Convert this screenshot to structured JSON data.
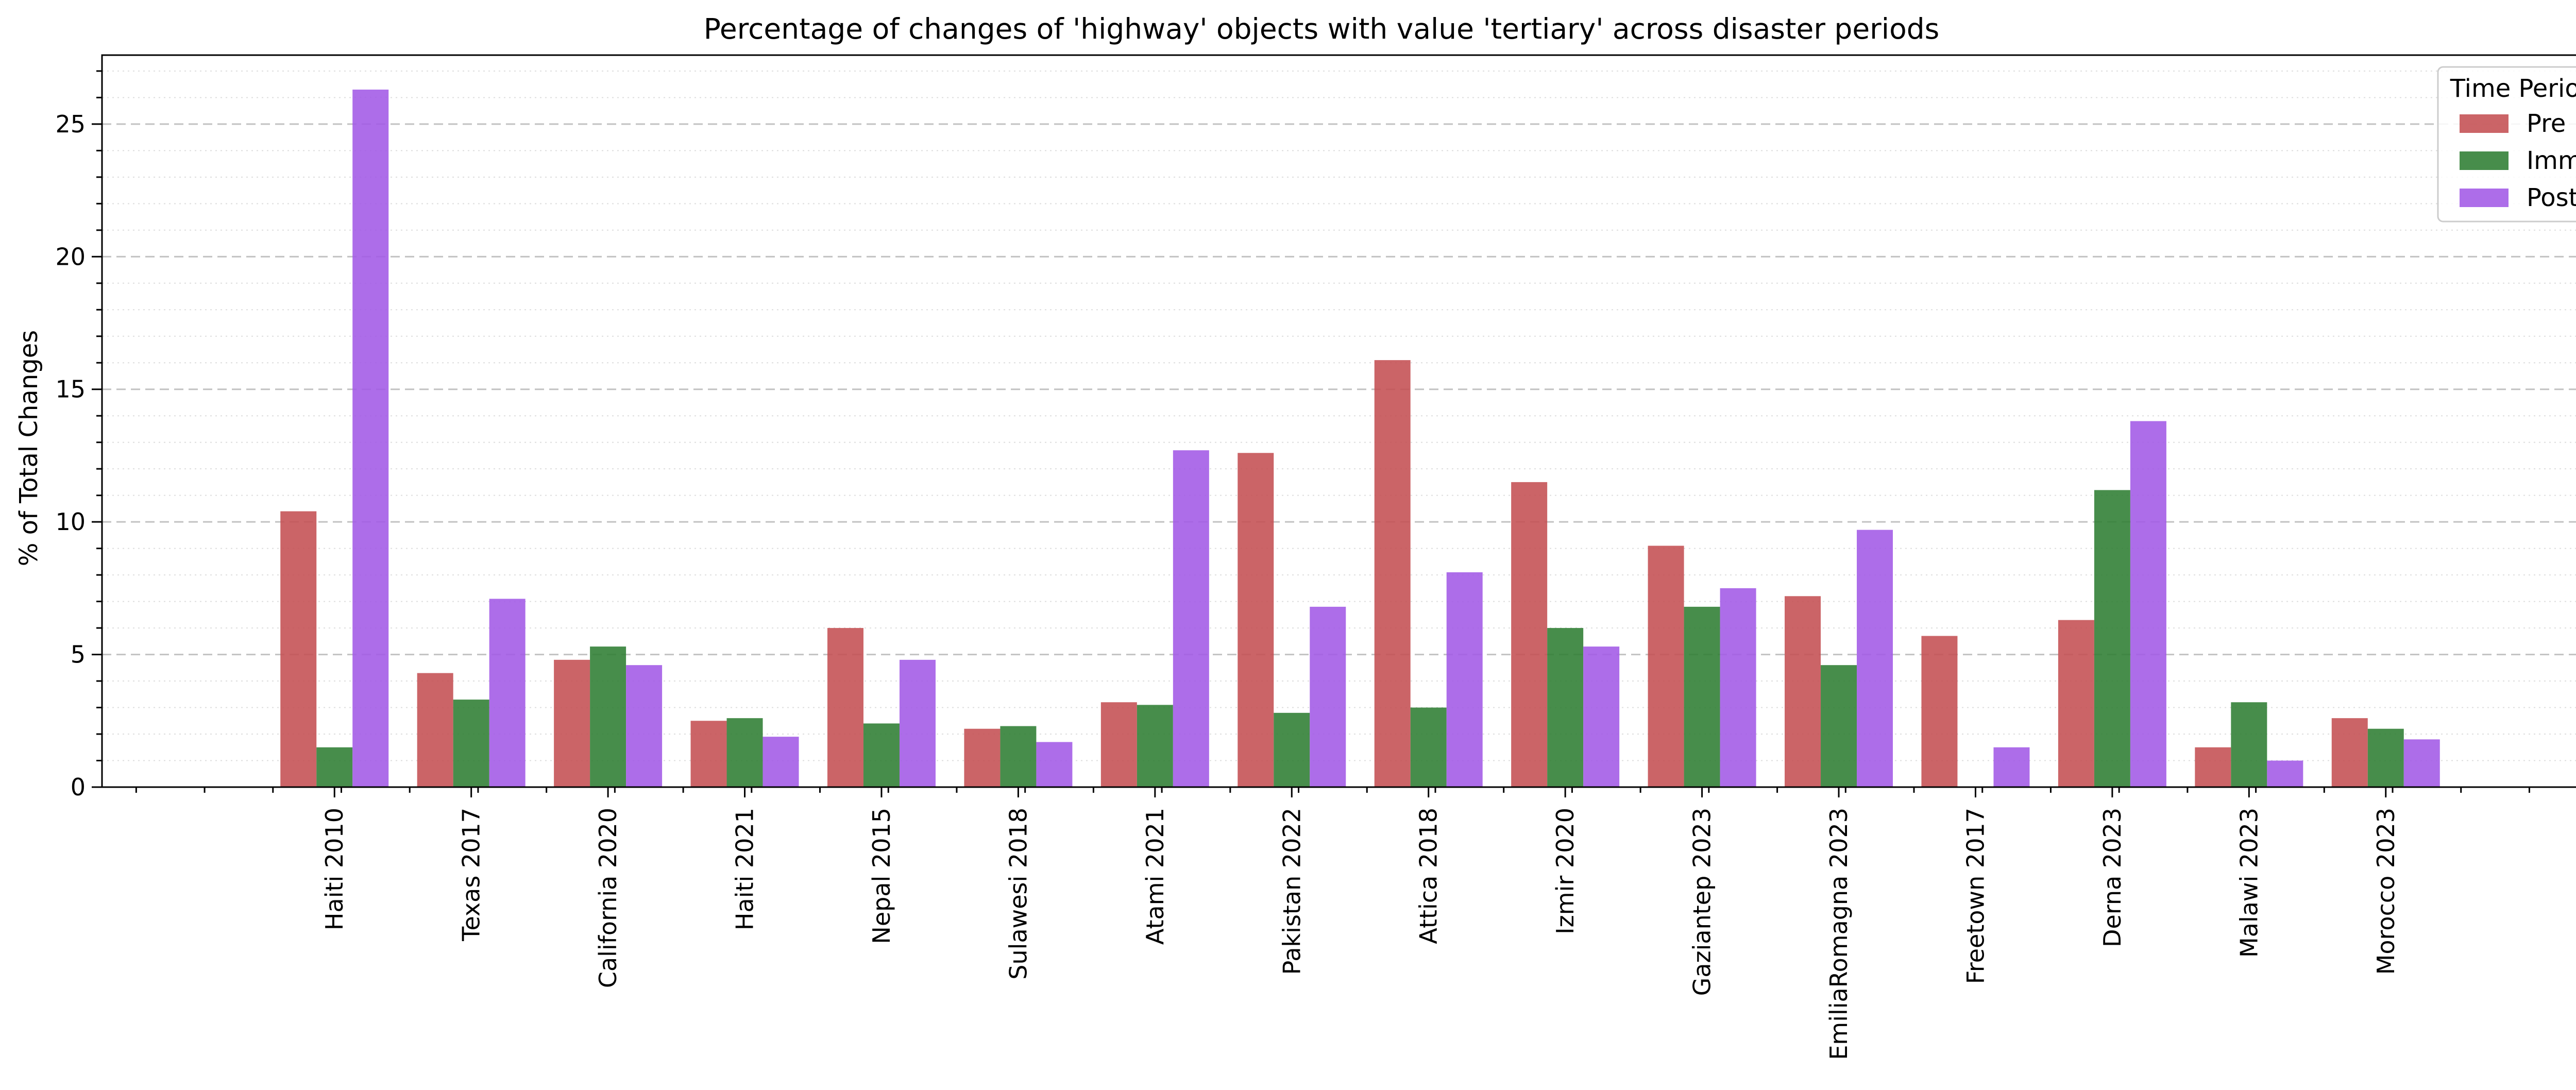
{
  "chart_data": {
    "type": "bar",
    "title": "Percentage of changes of 'highway' objects with value 'tertiary' across disaster periods",
    "xlabel": "",
    "ylabel": "% of Total Changes",
    "ylim": [
      0,
      27.6
    ],
    "yticks": [
      0,
      5,
      10,
      15,
      20,
      25
    ],
    "grid": "y",
    "legend_title": "Time Period",
    "legend_position": "top-right",
    "categories": [
      "Haiti 2010",
      "Texas 2017",
      "California 2020",
      "Haiti 2021",
      "Nepal 2015",
      "Sulawesi 2018",
      "Atami 2021",
      "Pakistan 2022",
      "Attica 2018",
      "Izmir 2020",
      "Gaziantep 2023",
      "EmiliaRomagna 2023",
      "Freetown 2017",
      "Derna 2023",
      "Malawi 2023",
      "Morocco 2023"
    ],
    "series": [
      {
        "name": "Pre",
        "color": "#c44e52",
        "values": [
          10.4,
          4.3,
          4.8,
          2.5,
          6.0,
          2.2,
          3.2,
          12.6,
          16.1,
          11.5,
          9.1,
          7.2,
          5.7,
          6.3,
          1.5,
          2.6
        ]
      },
      {
        "name": "Imm",
        "color": "#2e7d32",
        "values": [
          1.5,
          3.3,
          5.3,
          2.6,
          2.4,
          2.3,
          3.1,
          2.8,
          3.0,
          6.0,
          6.8,
          4.6,
          0.0,
          11.2,
          3.2,
          2.2
        ]
      },
      {
        "name": "Post",
        "color": "#a259e6",
        "values": [
          26.3,
          7.1,
          4.6,
          1.9,
          4.8,
          1.7,
          12.7,
          6.8,
          8.1,
          5.3,
          7.5,
          9.7,
          1.5,
          13.8,
          1.0,
          1.8
        ]
      }
    ]
  }
}
